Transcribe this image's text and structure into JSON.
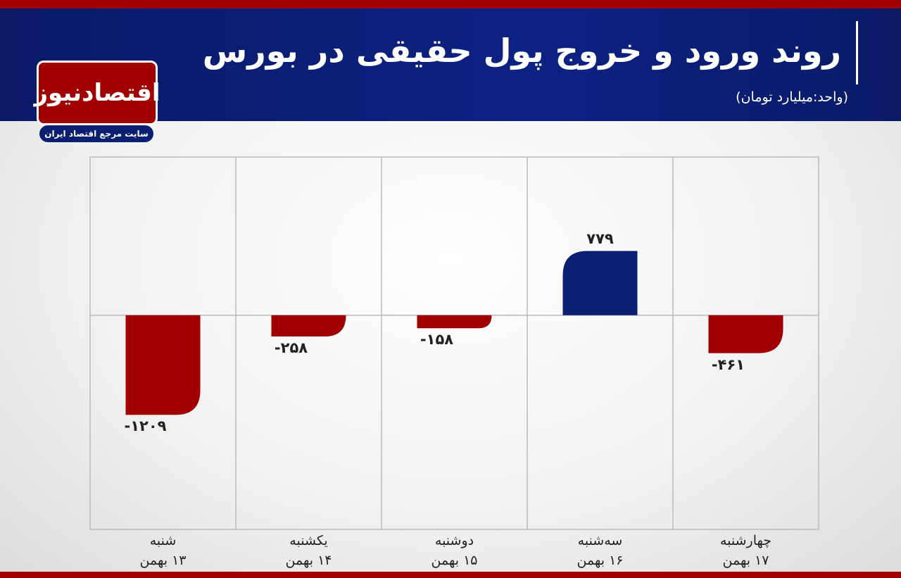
{
  "chart_data": {
    "type": "bar",
    "title": "روند ورود و خروج پول حقیقی در بورس",
    "subtitle": "(واحد:میلیارد تومان)",
    "categories": [
      "شنبه\n۱۳ بهمن",
      "یکشنبه\n۱۴ بهمن",
      "دوشنبه\n۱۵ بهمن",
      "سه‌شنبه\n۱۶ بهمن",
      "چهارشنبه\n۱۷ بهمن"
    ],
    "values": [
      -1209,
      -258,
      -158,
      779,
      -461
    ],
    "value_labels": [
      "-۱۲۰۹",
      "-۲۵۸",
      "-۱۵۸",
      "۷۷۹",
      "-۴۶۱"
    ],
    "colors": [
      "#a00000",
      "#a00000",
      "#a00000",
      "#0b1f72",
      "#a00000"
    ],
    "ylim": [
      -2600,
      1920
    ]
  },
  "logo": {
    "name": "اقتصادنیوز",
    "tagline": "سایت مرجع اقتصاد ایران"
  }
}
